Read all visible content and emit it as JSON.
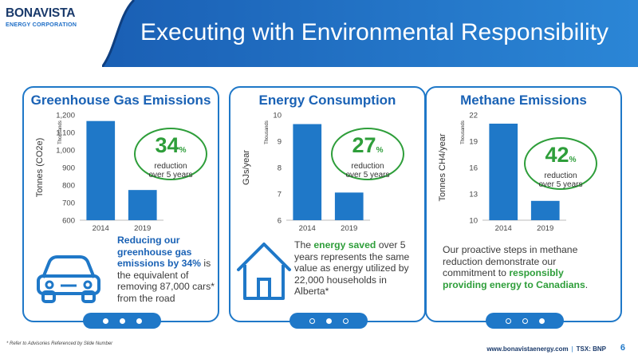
{
  "header": {
    "logo_name": "BONAVISTA",
    "logo_sub": "ENERGY CORPORATION",
    "title": "Executing with Environmental Responsibility"
  },
  "cards": [
    {
      "title": "Greenhouse Gas Emissions",
      "badge_value": "34",
      "badge_sign": "%",
      "badge_text_1": "reduction",
      "badge_text_2": "over 5 years",
      "desc_bold": "Reducing our greenhouse gas emissions by 34%",
      "desc_rest": " is the equivalent of removing 87,000 cars* from the road",
      "icon": "car-icon",
      "active_dot": 0
    },
    {
      "title": "Energy Consumption",
      "badge_value": "27",
      "badge_sign": "%",
      "badge_text_1": "reduction",
      "badge_text_2": "over 5 years",
      "desc_pre": "The ",
      "desc_bold": "energy saved",
      "desc_rest": " over 5 years represents the same value as energy utilized by 22,000 households in Alberta*",
      "icon": "house-icon",
      "active_dot": 1
    },
    {
      "title": "Methane Emissions",
      "badge_value": "42",
      "badge_sign": "%",
      "badge_text_1": "reduction",
      "badge_text_2": "over 5 years",
      "desc_pre": "Our proactive steps in methane reduction demonstrate our commitment to ",
      "desc_bold": "responsibly providing energy to Canadians",
      "desc_rest": ".",
      "active_dot": 2
    }
  ],
  "chart_data": [
    {
      "type": "bar",
      "categories": [
        "2014",
        "2019"
      ],
      "values": [
        1165,
        772
      ],
      "ylabel": "Tonnes (CO2e)",
      "unit_label": "Thousands",
      "ylim": [
        600,
        1200
      ],
      "yticks": [
        "600",
        "700",
        "800",
        "900",
        "1,000",
        "1,100",
        "1,200"
      ],
      "ytick_values": [
        600,
        700,
        800,
        900,
        1000,
        1100,
        1200
      ],
      "grid": false
    },
    {
      "type": "bar",
      "categories": [
        "2014",
        "2019"
      ],
      "values": [
        9.65,
        7.05
      ],
      "ylabel": "GJs/year",
      "unit_label": "Thousands",
      "ylim": [
        6,
        10
      ],
      "yticks": [
        "6",
        "7",
        "8",
        "9",
        "10"
      ],
      "ytick_values": [
        6,
        7,
        8,
        9,
        10
      ],
      "grid": false
    },
    {
      "type": "bar",
      "categories": [
        "2014",
        "2019"
      ],
      "values": [
        21.0,
        12.2
      ],
      "ylabel": "Tonnes CH4/year",
      "unit_label": "Thousands",
      "ylim": [
        10,
        22
      ],
      "yticks": [
        "10",
        "13",
        "16",
        "19",
        "22"
      ],
      "ytick_values": [
        10,
        13,
        16,
        19,
        22
      ],
      "grid": false
    }
  ],
  "footer": {
    "footnote": "* Refer to Advisories Referenced by Slide Number",
    "website": "www.bonavistaenergy.com",
    "separator": "|",
    "ticker": "TSX: BNP",
    "page_number": "6"
  },
  "colors": {
    "brand_blue": "#1f78c8",
    "dark_blue": "#1a3a6b",
    "title_blue": "#1a62b5",
    "accent_green": "#2e9e3a",
    "bar_blue": "#1f78c8"
  }
}
